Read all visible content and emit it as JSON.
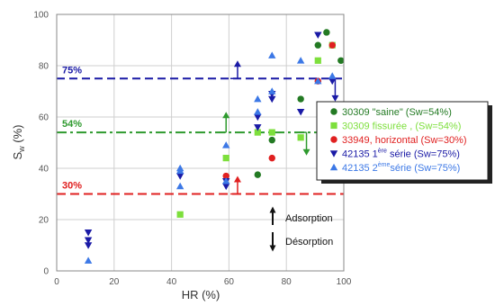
{
  "chart_data": {
    "type": "scatter",
    "xlabel": "HR (%)",
    "ylabel_main": "S",
    "ylabel_sub": "w",
    "ylabel_unit": " (%)",
    "xlim": [
      0,
      100
    ],
    "ylim": [
      0,
      100
    ],
    "xticks": [
      0,
      20,
      40,
      60,
      80,
      100
    ],
    "yticks": [
      0,
      20,
      40,
      60,
      80,
      100
    ],
    "grid": true,
    "reference_lines": [
      {
        "label": "75%",
        "y": 75,
        "color": "#1a1aa6",
        "dash": "9,5"
      },
      {
        "label": "54%",
        "y": 54,
        "color": "#2e9a2e",
        "dash": "11,4,3,4"
      },
      {
        "label": "30%",
        "y": 30,
        "color": "#e02020",
        "dash": "10,5"
      }
    ],
    "direction_arrows": [
      {
        "x": 63,
        "y_from": 75,
        "y_to": 82,
        "direction": "up",
        "color": "#1a1aa6"
      },
      {
        "x": 97,
        "y_from": 75,
        "y_to": 66,
        "direction": "down",
        "color": "#1a1aa6"
      },
      {
        "x": 59,
        "y_from": 54,
        "y_to": 62,
        "direction": "up",
        "color": "#2e9a2e"
      },
      {
        "x": 87,
        "y_from": 54,
        "y_to": 45,
        "direction": "down",
        "color": "#2e9a2e"
      },
      {
        "x": 63,
        "y_from": 30,
        "y_to": 37,
        "direction": "up",
        "color": "#e02020"
      }
    ],
    "series": [
      {
        "name": "30309 \"saine\" (Sw=54%)",
        "color": "#237a23",
        "marker": "circle",
        "points": [
          [
            70,
            37.5
          ],
          [
            75,
            51
          ],
          [
            85,
            67
          ],
          [
            91,
            88
          ],
          [
            94,
            93
          ],
          [
            99,
            82
          ]
        ]
      },
      {
        "name": "30309 fissurée , (Sw=54%)",
        "color": "#7ddf3c",
        "marker": "square",
        "points": [
          [
            43,
            22
          ],
          [
            59,
            44
          ],
          [
            70,
            54
          ],
          [
            75,
            54
          ],
          [
            85,
            52
          ],
          [
            91,
            82
          ],
          [
            96,
            88
          ]
        ]
      },
      {
        "name": "33949, horizontal (Sw=30%)",
        "color": "#e02020",
        "marker": "circle",
        "points": [
          [
            59,
            37
          ],
          [
            75,
            44
          ],
          [
            91,
            74
          ],
          [
            96,
            88
          ]
        ]
      },
      {
        "name": "42135 1ère série (Sw=75%)",
        "color": "#1a1aa6",
        "marker": "triangle-down",
        "points": [
          [
            11,
            15
          ],
          [
            11,
            12
          ],
          [
            11,
            10
          ],
          [
            43,
            37
          ],
          [
            59,
            35
          ],
          [
            59,
            33
          ],
          [
            70,
            60
          ],
          [
            70,
            56
          ],
          [
            75,
            69
          ],
          [
            75,
            67
          ],
          [
            85,
            62
          ],
          [
            91,
            92
          ],
          [
            96,
            74
          ]
        ]
      },
      {
        "name": "42135 2ème série (Sw=75%)",
        "color": "#3c78e6",
        "marker": "triangle-up",
        "points": [
          [
            11,
            4
          ],
          [
            43,
            40
          ],
          [
            43,
            39
          ],
          [
            43,
            33
          ],
          [
            59,
            49
          ],
          [
            59,
            35
          ],
          [
            70,
            67
          ],
          [
            70,
            62
          ],
          [
            75,
            84
          ],
          [
            75,
            70
          ],
          [
            85,
            82
          ],
          [
            91,
            74
          ],
          [
            96,
            76
          ]
        ]
      }
    ],
    "legend": {
      "placement": "right",
      "entries": [
        {
          "prefix": "30309 \"saine\" (Sw=54%)",
          "sup": "",
          "suffix": "",
          "color": "#237a23",
          "marker": "circle"
        },
        {
          "prefix": "30309 fissurée , (Sw=54%)",
          "sup": "",
          "suffix": "",
          "color": "#7ddf3c",
          "marker": "square"
        },
        {
          "prefix": "33949, horizontal (Sw=30%)",
          "sup": "",
          "suffix": "",
          "color": "#e02020",
          "marker": "circle"
        },
        {
          "prefix": "42135 1",
          "sup": "ère",
          "suffix": " série (Sw=75%)",
          "color": "#1a1aa6",
          "marker": "triangle-down"
        },
        {
          "prefix": "42135 2",
          "sup": "ème",
          "suffix": "série (Sw=75%)",
          "color": "#3c78e6",
          "marker": "triangle-up"
        }
      ]
    },
    "annotations": {
      "adsorption": "Adsorption",
      "desorption": "Désorption"
    }
  }
}
